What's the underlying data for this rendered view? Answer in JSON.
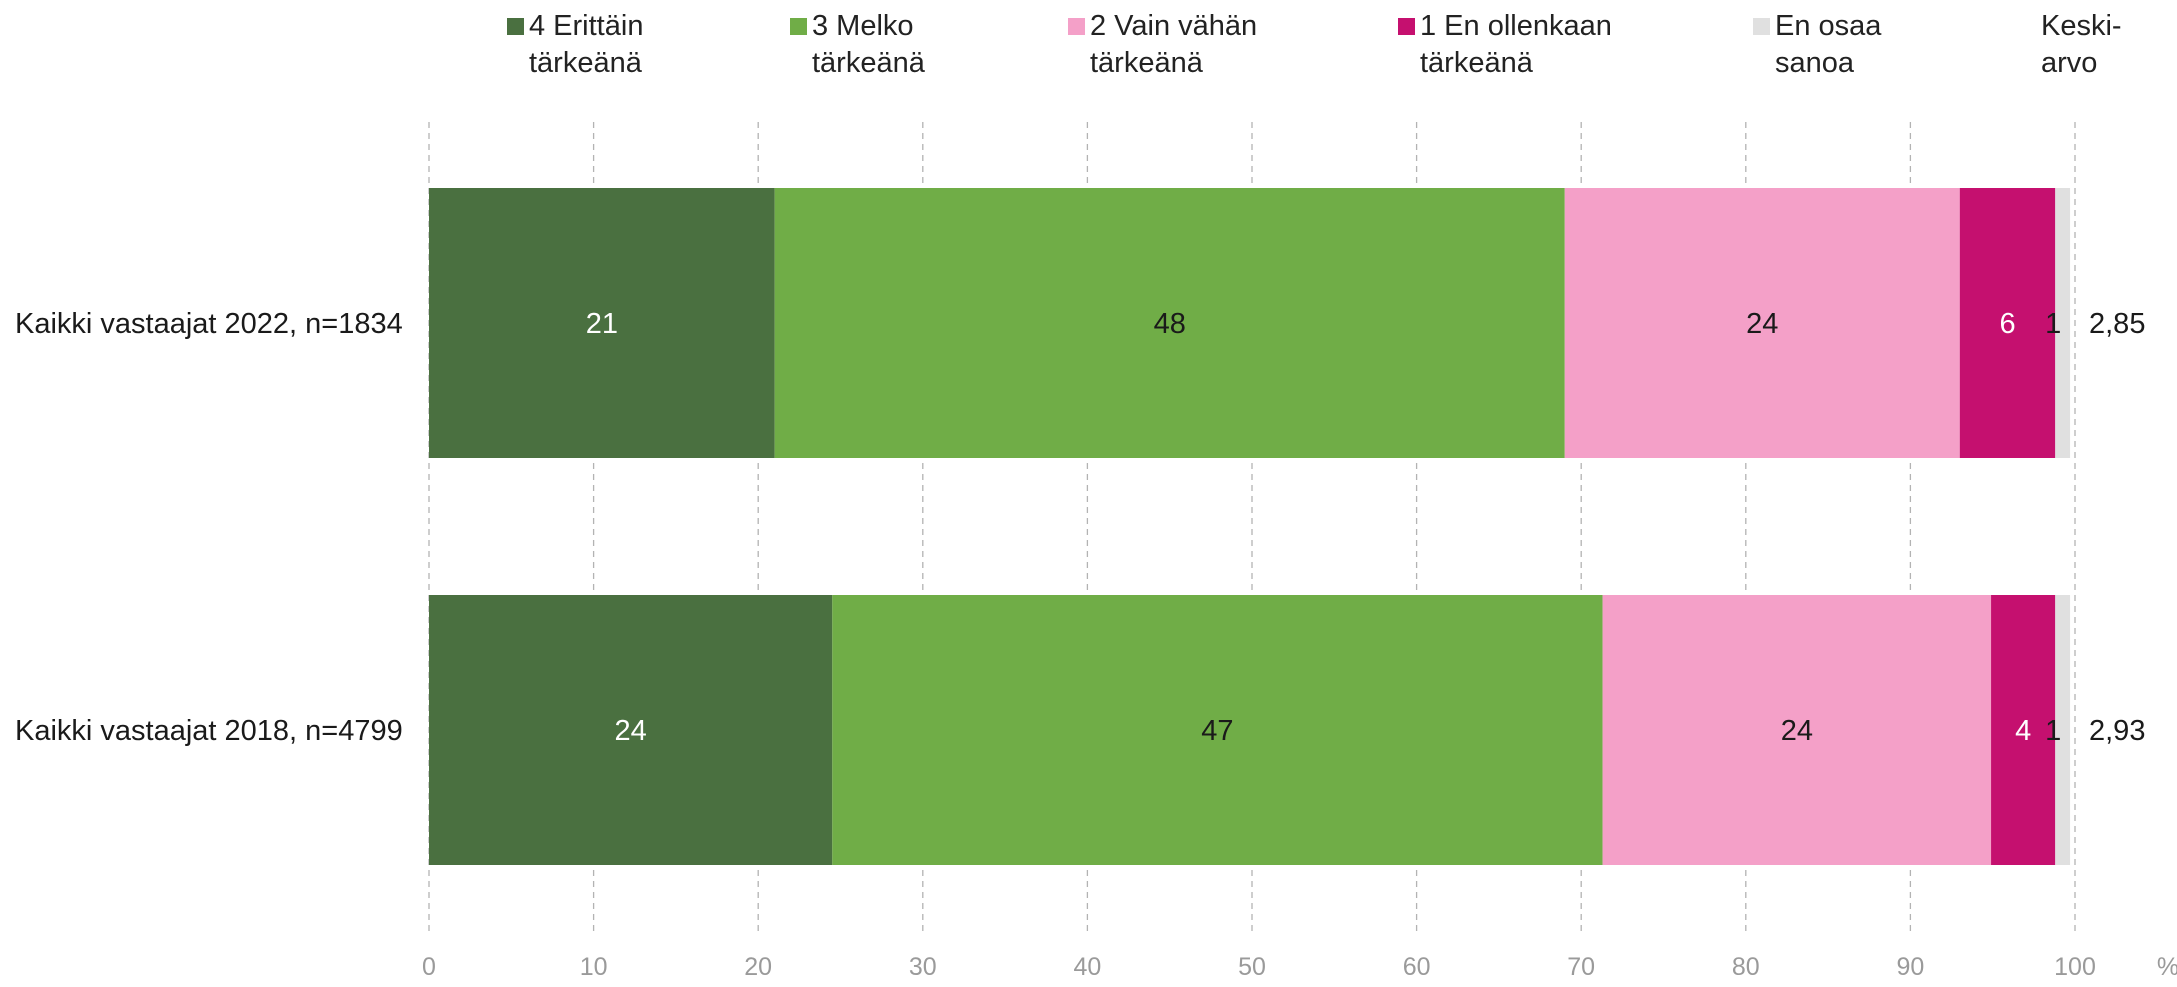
{
  "chart_data": {
    "type": "bar",
    "orientation": "horizontal",
    "stacked": true,
    "categories": [
      "Kaikki vastaajat 2022, n=1834",
      "Kaikki vastaajat 2018, n=4799"
    ],
    "series": [
      {
        "name": "4 Erittäin\ntärkeänä",
        "color": "#4a7040",
        "label_color": "#ffffff",
        "values": [
          21,
          24
        ]
      },
      {
        "name": "3 Melko\ntärkeänä",
        "color": "#70ad47",
        "label_color": "#1a1a1a",
        "values": [
          48,
          47
        ]
      },
      {
        "name": "2 Vain vähän\ntärkeänä",
        "color": "#f4a0c8",
        "label_color": "#1a1a1a",
        "values": [
          24,
          24
        ]
      },
      {
        "name": "1 En ollenkaan\ntärkeänä",
        "color": "#c5106f",
        "label_color": "#ffffff",
        "values": [
          6,
          4
        ]
      },
      {
        "name": "En osaa\nsanoa",
        "color": "#e0e0e0",
        "label_color": "#1a1a1a",
        "values": [
          1,
          1
        ]
      }
    ],
    "bar_extents": [
      [
        21,
        48,
        24,
        5.8,
        0.9
      ],
      [
        24.5,
        46.8,
        23.6,
        3.9,
        0.9
      ]
    ],
    "mean_header": "Keski-\narvo",
    "means": [
      "2,85",
      "2,93"
    ],
    "x_ticks": [
      "0",
      "10",
      "20",
      "30",
      "40",
      "50",
      "60",
      "70",
      "80",
      "90",
      "100"
    ],
    "x_unit": "%",
    "xlim": [
      0,
      100
    ],
    "grid": "vertical dashed"
  }
}
